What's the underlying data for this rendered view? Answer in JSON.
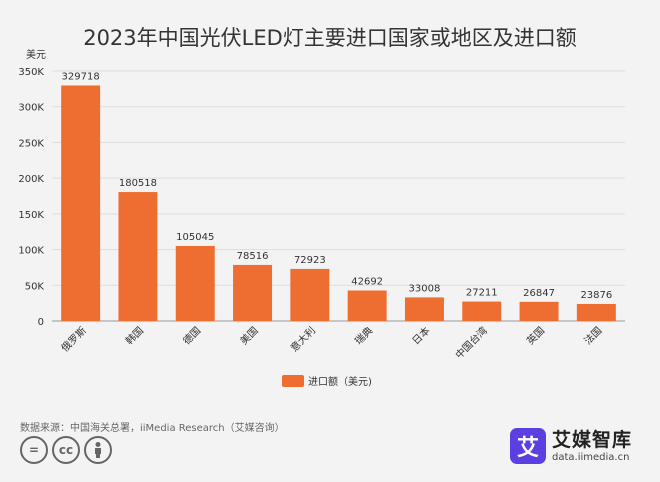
{
  "chart_data": {
    "type": "bar",
    "title": "2023年中国光伏LED灯主要进口国家或地区及进口额",
    "ylabel": "美元",
    "xlabel": "",
    "categories": [
      "俄罗斯",
      "韩国",
      "德国",
      "美国",
      "意大利",
      "瑞典",
      "日本",
      "中国台湾",
      "英国",
      "法国"
    ],
    "values": [
      329718,
      180518,
      105045,
      78516,
      72923,
      42692,
      33008,
      27211,
      26847,
      23876
    ],
    "ylim": [
      0,
      350000
    ],
    "yticks": [
      0,
      50000,
      100000,
      150000,
      200000,
      250000,
      300000,
      350000
    ],
    "ytick_labels": [
      "0",
      "50K",
      "100K",
      "150K",
      "200K",
      "250K",
      "300K",
      "350K"
    ],
    "legend": [
      {
        "label": "进口额（美元)",
        "color": "#ee6e31"
      }
    ],
    "legend_position": "bottom-center",
    "bar_color": "#ee6e31",
    "grid": true
  },
  "footer": {
    "source": "数据来源：中国海关总署，iiMedia Research（艾媒咨询）",
    "cc_icons": [
      "=",
      "cc",
      "person"
    ]
  },
  "brand": {
    "logo_char": "艾",
    "name": "艾媒智库",
    "url": "data.iimedia.cn"
  }
}
